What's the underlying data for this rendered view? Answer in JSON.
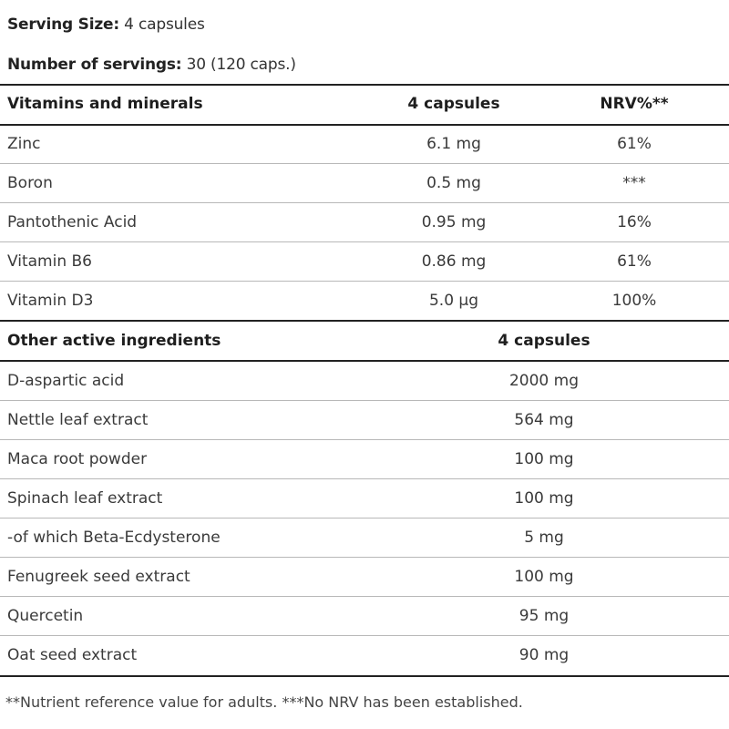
{
  "serving": {
    "size_label": "Serving Size:",
    "size_value": "4 capsules",
    "servings_label": "Number of servings:",
    "servings_value": "30 (120 caps.)"
  },
  "vitamins": {
    "header": [
      "Vitamins and minerals",
      "4 capsules",
      "NRV%**"
    ],
    "rows": [
      [
        "Zinc",
        "6.1 mg",
        "61%"
      ],
      [
        "Boron",
        "0.5 mg",
        "***"
      ],
      [
        "Pantothenic Acid",
        "0.95 mg",
        "16%"
      ],
      [
        "Vitamin B6",
        "0.86 mg",
        "61%"
      ],
      [
        "Vitamin D3",
        "5.0 µg",
        "100%"
      ]
    ]
  },
  "others": {
    "header": [
      "Other active ingredients",
      "4 capsules"
    ],
    "rows": [
      [
        "D-aspartic acid",
        "2000 mg"
      ],
      [
        "Nettle leaf extract",
        "564 mg"
      ],
      [
        "Maca root powder",
        "100 mg"
      ],
      [
        "Spinach leaf extract",
        "100 mg"
      ],
      [
        "-of which Beta-Ecdysterone",
        "5 mg"
      ],
      [
        "Fenugreek seed extract",
        "100 mg"
      ],
      [
        "Quercetin",
        "95 mg"
      ],
      [
        "Oat seed extract",
        "90 mg"
      ]
    ]
  },
  "footnote": "**Nutrient reference value for adults. ***No NRV has been established."
}
